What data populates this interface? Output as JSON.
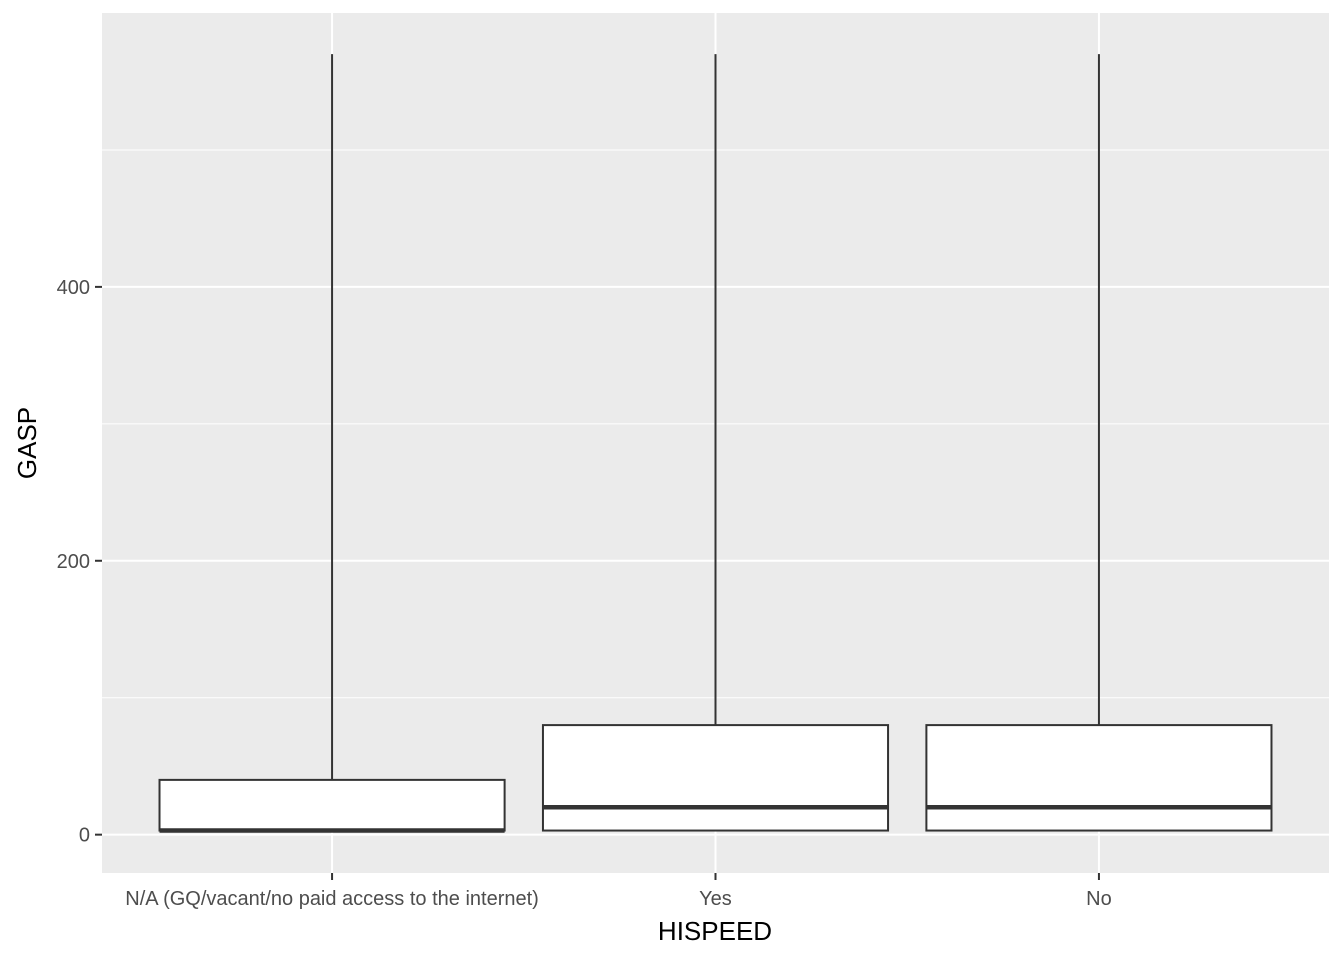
{
  "chart_data": {
    "type": "boxplot",
    "title": "",
    "xlabel": "HISPEED",
    "ylabel": "GASP",
    "categories": [
      "N/A (GQ/vacant/no paid access to the internet)",
      "Yes",
      "No"
    ],
    "ylim": [
      -28,
      600
    ],
    "y_ticks": [
      0,
      200,
      400
    ],
    "grid": true,
    "boxes": [
      {
        "category": "N/A (GQ/vacant/no paid access to the internet)",
        "min": 3,
        "q1": 3,
        "median": 3,
        "q3": 40,
        "max": 570
      },
      {
        "category": "Yes",
        "min": 3,
        "q1": 3,
        "median": 20,
        "q3": 80,
        "max": 570
      },
      {
        "category": "No",
        "min": 3,
        "q1": 3,
        "median": 20,
        "q3": 80,
        "max": 570
      }
    ],
    "colors": {
      "panel": "#ebebeb",
      "grid_major": "#ffffff",
      "box_fill": "#ffffff",
      "box_line": "#333333"
    }
  }
}
